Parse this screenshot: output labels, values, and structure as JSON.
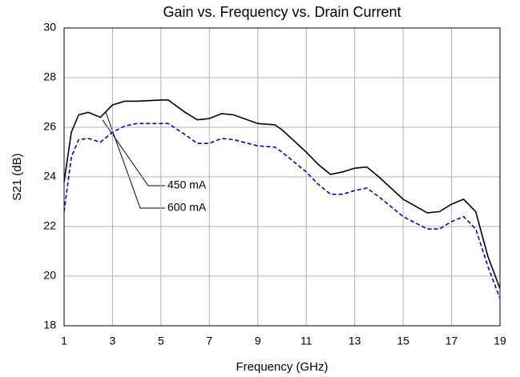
{
  "chart_data": {
    "type": "line",
    "title": "Gain vs. Frequency vs. Drain Current",
    "xlabel": "Frequency (GHz)",
    "ylabel": "S21 (dB)",
    "x": [
      1,
      1.3,
      1.6,
      2,
      2.5,
      3,
      3.5,
      4,
      5,
      5.3,
      6,
      6.5,
      7,
      7.5,
      8,
      9,
      9.7,
      10,
      11,
      11.5,
      12,
      12.5,
      13,
      13.5,
      14,
      15,
      16,
      16.5,
      17,
      17.5,
      18,
      18.5,
      19
    ],
    "series": [
      {
        "name": "600 mA",
        "color": "#000000",
        "dash": false,
        "values": [
          23.8,
          25.8,
          26.5,
          26.6,
          26.4,
          26.9,
          27.05,
          27.05,
          27.1,
          27.1,
          26.6,
          26.3,
          26.35,
          26.55,
          26.5,
          26.15,
          26.1,
          25.9,
          25.0,
          24.5,
          24.1,
          24.2,
          24.35,
          24.4,
          24.0,
          23.1,
          22.55,
          22.6,
          22.9,
          23.1,
          22.6,
          20.8,
          19.5
        ]
      },
      {
        "name": "450 mA",
        "color": "#0000cc",
        "dash": true,
        "values": [
          22.6,
          24.8,
          25.5,
          25.55,
          25.4,
          25.8,
          26.05,
          26.15,
          26.15,
          26.15,
          25.7,
          25.35,
          25.35,
          25.55,
          25.5,
          25.25,
          25.2,
          25.0,
          24.2,
          23.7,
          23.3,
          23.3,
          23.45,
          23.55,
          23.2,
          22.4,
          21.9,
          21.9,
          22.2,
          22.4,
          21.9,
          20.4,
          19.1
        ]
      }
    ],
    "xlim": [
      1,
      19
    ],
    "xticks": [
      1,
      3,
      5,
      7,
      9,
      11,
      13,
      15,
      17,
      19
    ],
    "ylim": [
      18,
      30
    ],
    "yticks": [
      18,
      20,
      22,
      24,
      26,
      28,
      30
    ],
    "grid": true
  }
}
